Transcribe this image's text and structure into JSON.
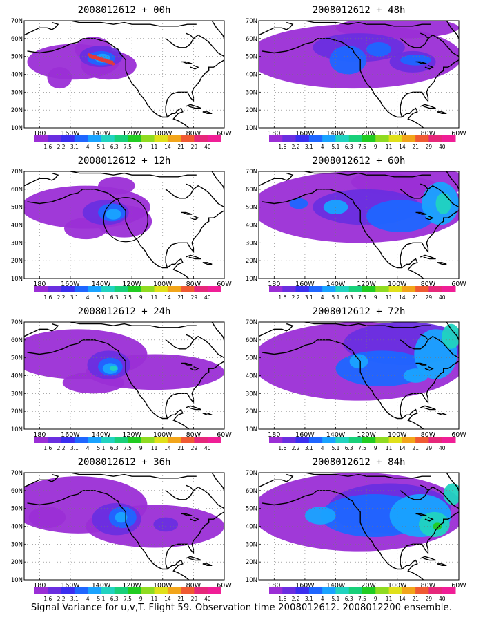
{
  "caption": "Signal Variance for u,v,T. Flight 59. Observation time 2008012612. 2008012200 ensemble.",
  "map": {
    "lat_labels": [
      "70N",
      "60N",
      "50N",
      "40N",
      "30N",
      "20N",
      "10N"
    ],
    "lon_labels": [
      "180",
      "160W",
      "140W",
      "120W",
      "100W",
      "80W",
      "60W"
    ],
    "colorbar_labels": [
      "1.6",
      "2.2",
      "3.1",
      "4",
      "5.1",
      "6.3",
      "7.5",
      "9",
      "11",
      "14",
      "21",
      "29",
      "40"
    ],
    "colorbar_colors": [
      "#9b2ed6",
      "#6a2ee0",
      "#3a2ef0",
      "#1f66ff",
      "#19a3ff",
      "#21d3c0",
      "#18d07a",
      "#21cc21",
      "#8fdb21",
      "#e0e01a",
      "#f2a51a",
      "#f05a33",
      "#e6287a",
      "#f01e96"
    ],
    "fill_colors": {
      "light_violet": "#9b2ed6",
      "violet": "#6a2ee0",
      "blue": "#1f66ff",
      "sky": "#19a3ff",
      "teal": "#21d3c0",
      "green": "#21cc21"
    }
  },
  "panels": [
    {
      "title": "2008012612 + 00h",
      "id": "00h"
    },
    {
      "title": "2008012612 + 12h",
      "id": "12h"
    },
    {
      "title": "2008012612 + 24h",
      "id": "24h"
    },
    {
      "title": "2008012612 + 36h",
      "id": "36h"
    },
    {
      "title": "2008012612 + 48h",
      "id": "48h"
    },
    {
      "title": "2008012612 + 60h",
      "id": "60h"
    },
    {
      "title": "2008012612 + 72h",
      "id": "72h"
    },
    {
      "title": "2008012612 + 84h",
      "id": "84h"
    }
  ]
}
